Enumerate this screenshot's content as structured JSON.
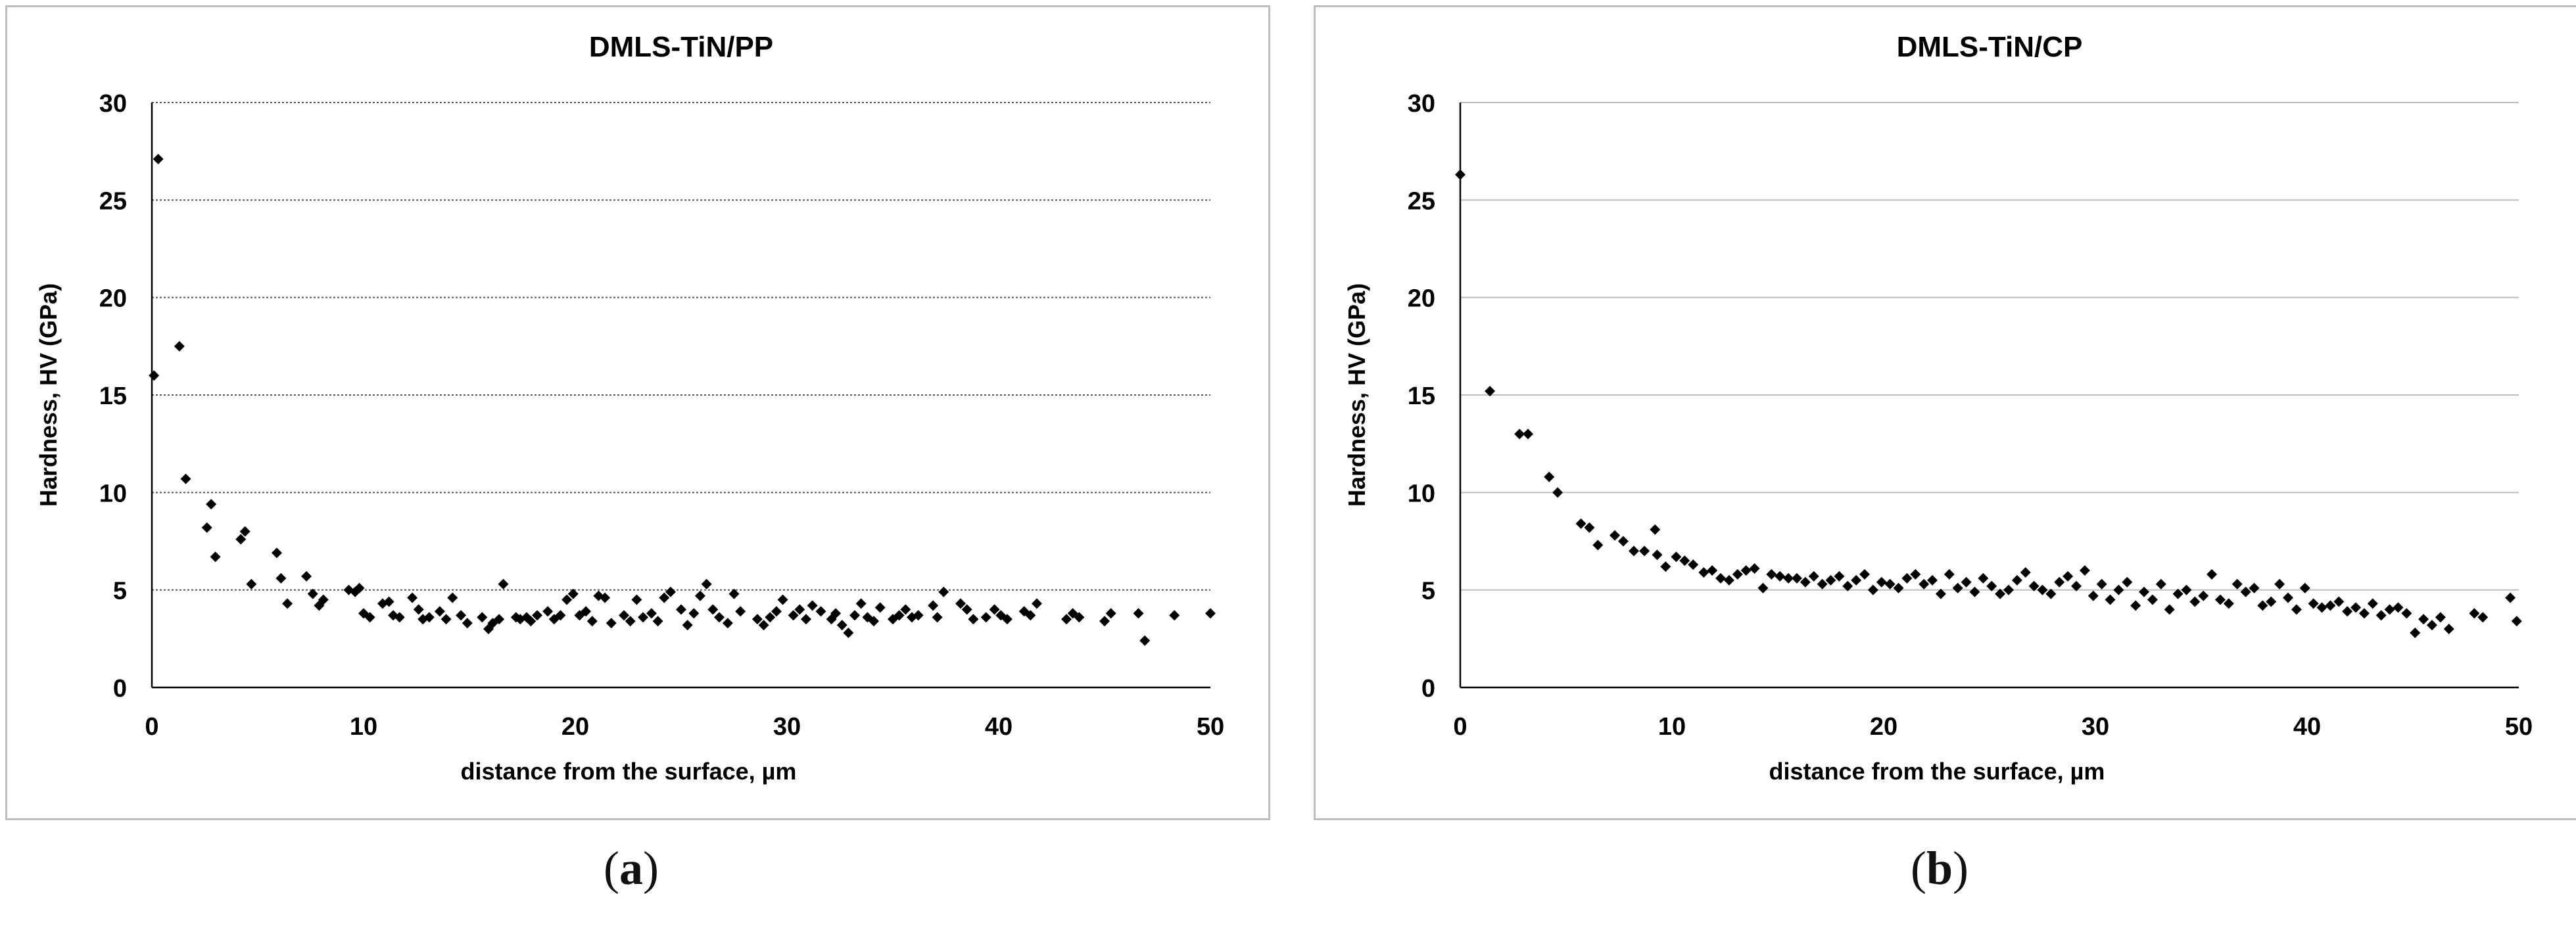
{
  "colors": {
    "marker": "#000000",
    "grid": "#bdbdbd",
    "border": "#bdbdbd",
    "text": "#000000"
  },
  "captions": [
    {
      "open": "(",
      "letter": "a",
      "close": ")"
    },
    {
      "open": "(",
      "letter": "b",
      "close": ")"
    }
  ],
  "chart_data": [
    {
      "type": "scatter",
      "title": "DMLS-TiN/PP",
      "xlabel": "distance from the surface, µm",
      "ylabel": "Hardness, HV (GPa)",
      "xlim": [
        0,
        50
      ],
      "ylim": [
        0,
        30
      ],
      "xticks": [
        0,
        10,
        20,
        30,
        40,
        50
      ],
      "yticks": [
        0,
        5,
        10,
        15,
        20,
        25,
        30
      ],
      "grid_style": "dotted",
      "legend": "none",
      "x": [
        0.1,
        0.3,
        1.3,
        1.6,
        2.6,
        2.8,
        3.0,
        4.2,
        4.4,
        4.7,
        5.9,
        6.1,
        6.4,
        7.3,
        7.6,
        7.9,
        8.1,
        9.3,
        9.6,
        9.8,
        10.0,
        10.3,
        10.9,
        11.2,
        11.4,
        11.7,
        12.3,
        12.6,
        12.8,
        13.1,
        13.6,
        13.9,
        14.2,
        14.6,
        14.9,
        15.6,
        15.9,
        16.1,
        16.4,
        16.6,
        17.2,
        17.4,
        17.7,
        17.9,
        18.2,
        18.7,
        19.0,
        19.3,
        19.6,
        19.9,
        20.2,
        20.5,
        20.8,
        21.1,
        21.4,
        21.7,
        22.3,
        22.6,
        22.9,
        23.2,
        23.6,
        23.9,
        24.2,
        24.5,
        25.0,
        25.3,
        25.6,
        25.9,
        26.2,
        26.5,
        26.8,
        27.2,
        27.5,
        27.8,
        28.6,
        28.9,
        29.2,
        29.5,
        29.8,
        30.3,
        30.6,
        30.9,
        31.2,
        31.6,
        32.1,
        32.3,
        32.6,
        32.9,
        33.2,
        33.5,
        33.8,
        34.1,
        34.4,
        35.0,
        35.3,
        35.6,
        35.9,
        36.2,
        36.9,
        37.1,
        37.4,
        38.2,
        38.5,
        38.8,
        39.4,
        39.8,
        40.1,
        40.4,
        41.2,
        41.5,
        41.8,
        43.2,
        43.5,
        43.8,
        45.0,
        45.3,
        46.6,
        46.9,
        48.3,
        50.0
      ],
      "y": [
        16.0,
        27.1,
        17.5,
        10.7,
        8.2,
        9.4,
        6.7,
        7.6,
        8.0,
        5.3,
        6.9,
        5.6,
        4.3,
        5.7,
        4.8,
        4.2,
        4.5,
        5.0,
        4.9,
        5.1,
        3.8,
        3.6,
        4.3,
        4.4,
        3.7,
        3.6,
        4.6,
        4.0,
        3.5,
        3.6,
        3.9,
        3.5,
        4.6,
        3.7,
        3.3,
        3.6,
        3.0,
        3.3,
        3.5,
        5.3,
        3.6,
        3.5,
        3.6,
        3.4,
        3.7,
        3.9,
        3.5,
        3.7,
        4.5,
        4.8,
        3.7,
        3.9,
        3.4,
        4.7,
        4.6,
        3.3,
        3.7,
        3.4,
        4.5,
        3.6,
        3.8,
        3.4,
        4.6,
        4.9,
        4.0,
        3.2,
        3.8,
        4.7,
        5.3,
        4.0,
        3.6,
        3.3,
        4.8,
        3.9,
        3.5,
        3.2,
        3.6,
        3.9,
        4.5,
        3.7,
        4.0,
        3.5,
        4.2,
        3.9,
        3.5,
        3.8,
        3.2,
        2.8,
        3.7,
        4.3,
        3.6,
        3.4,
        4.1,
        3.5,
        3.7,
        4.0,
        3.6,
        3.7,
        4.2,
        3.6,
        4.9,
        4.3,
        4.0,
        3.5,
        3.6,
        4.0,
        3.7,
        3.5,
        3.9,
        3.7,
        4.3,
        3.5,
        3.8,
        3.6,
        3.4,
        3.8,
        3.8,
        2.4,
        3.7,
        3.8
      ]
    },
    {
      "type": "scatter",
      "title": "DMLS-TiN/CP",
      "xlabel": "distance from the surface, µm",
      "ylabel": "Hardness, HV (GPa)",
      "xlim": [
        0,
        50
      ],
      "ylim": [
        0,
        30
      ],
      "xticks": [
        0,
        10,
        20,
        30,
        40,
        50
      ],
      "yticks": [
        0,
        5,
        10,
        15,
        20,
        25,
        30
      ],
      "grid_style": "solid",
      "legend": "none",
      "x": [
        0.0,
        1.4,
        2.8,
        3.2,
        4.2,
        4.6,
        5.7,
        6.1,
        6.5,
        7.3,
        7.7,
        8.2,
        8.7,
        9.2,
        9.3,
        9.7,
        10.2,
        10.6,
        11.0,
        11.5,
        11.9,
        12.3,
        12.7,
        13.1,
        13.5,
        13.9,
        14.3,
        14.7,
        15.1,
        15.5,
        15.9,
        16.3,
        16.7,
        17.1,
        17.5,
        17.9,
        18.3,
        18.7,
        19.1,
        19.5,
        19.9,
        20.3,
        20.7,
        21.1,
        21.5,
        21.9,
        22.3,
        22.7,
        23.1,
        23.5,
        23.9,
        24.3,
        24.7,
        25.1,
        25.5,
        25.9,
        26.3,
        26.7,
        27.1,
        27.5,
        27.9,
        28.3,
        28.7,
        29.1,
        29.5,
        29.9,
        30.3,
        30.7,
        31.1,
        31.5,
        31.9,
        32.3,
        32.7,
        33.1,
        33.5,
        33.9,
        34.3,
        34.7,
        35.1,
        35.5,
        35.9,
        36.3,
        36.7,
        37.1,
        37.5,
        37.9,
        38.3,
        38.7,
        39.1,
        39.5,
        39.9,
        40.3,
        40.7,
        41.1,
        41.5,
        41.9,
        42.3,
        42.7,
        43.1,
        43.5,
        43.9,
        44.3,
        44.7,
        45.1,
        45.5,
        45.9,
        46.3,
        46.7,
        47.9,
        48.3,
        49.6,
        49.9
      ],
      "y": [
        26.3,
        15.2,
        13.0,
        13.0,
        10.8,
        10.0,
        8.4,
        8.2,
        7.3,
        7.8,
        7.5,
        7.0,
        7.0,
        8.1,
        6.8,
        6.2,
        6.7,
        6.5,
        6.3,
        5.9,
        6.0,
        5.6,
        5.5,
        5.8,
        6.0,
        6.1,
        5.1,
        5.8,
        5.7,
        5.6,
        5.6,
        5.4,
        5.7,
        5.3,
        5.5,
        5.7,
        5.2,
        5.5,
        5.8,
        5.0,
        5.4,
        5.3,
        5.1,
        5.6,
        5.8,
        5.3,
        5.5,
        4.8,
        5.8,
        5.1,
        5.4,
        4.9,
        5.6,
        5.2,
        4.8,
        5.0,
        5.5,
        5.9,
        5.2,
        5.0,
        4.8,
        5.4,
        5.7,
        5.2,
        6.0,
        4.7,
        5.3,
        4.5,
        5.0,
        5.4,
        4.2,
        4.9,
        4.5,
        5.3,
        4.0,
        4.8,
        5.0,
        4.4,
        4.7,
        5.8,
        4.5,
        4.3,
        5.3,
        4.9,
        5.1,
        4.2,
        4.4,
        5.3,
        4.6,
        4.0,
        5.1,
        4.3,
        4.1,
        4.2,
        4.4,
        3.9,
        4.1,
        3.8,
        4.3,
        3.7,
        4.0,
        4.1,
        3.8,
        2.8,
        3.5,
        3.2,
        3.6,
        3.0,
        3.8,
        3.6,
        4.6,
        3.4
      ]
    }
  ]
}
